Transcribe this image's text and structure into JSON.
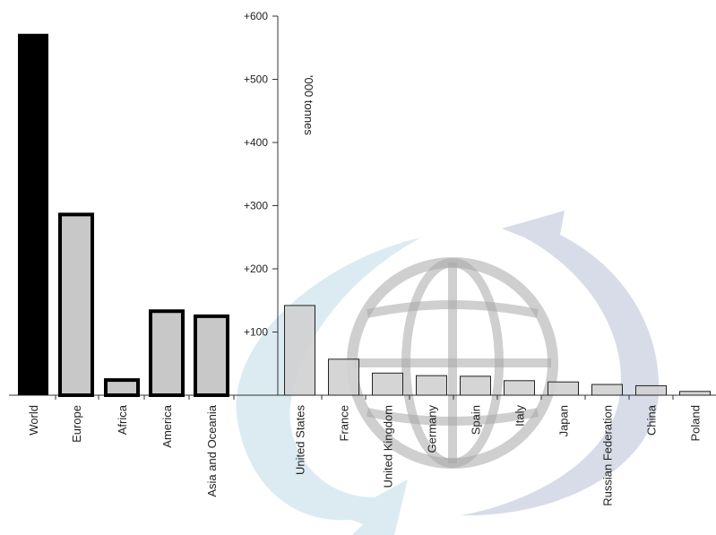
{
  "chart_data": {
    "type": "bar",
    "unit_label": "'000 tonnes",
    "y_ticks": [
      "+100",
      "+200",
      "+300",
      "+400",
      "+500",
      "+600"
    ],
    "ylim": [
      0,
      600
    ],
    "grid": false,
    "regions": {
      "categories": [
        "World",
        "Europe",
        "Africa",
        "America",
        "Asia and Oceania"
      ],
      "values": [
        572,
        286,
        24,
        133,
        125
      ]
    },
    "countries": {
      "categories": [
        "United States",
        "France",
        "United Kingdom",
        "Germany",
        "Spain",
        "Italy",
        "Japan",
        "Russian Federation",
        "China",
        "Poland"
      ],
      "values": [
        142,
        57,
        35,
        31,
        30,
        23,
        21,
        17,
        15,
        6
      ]
    },
    "colors": {
      "world": "#000000",
      "region_fill": "#c8c8c8",
      "country_fill": "#d0d0d0",
      "arrow_light": "#d2e6ee",
      "arrow_dark": "#cdd3e2",
      "globe": "#a8a8a8"
    }
  }
}
